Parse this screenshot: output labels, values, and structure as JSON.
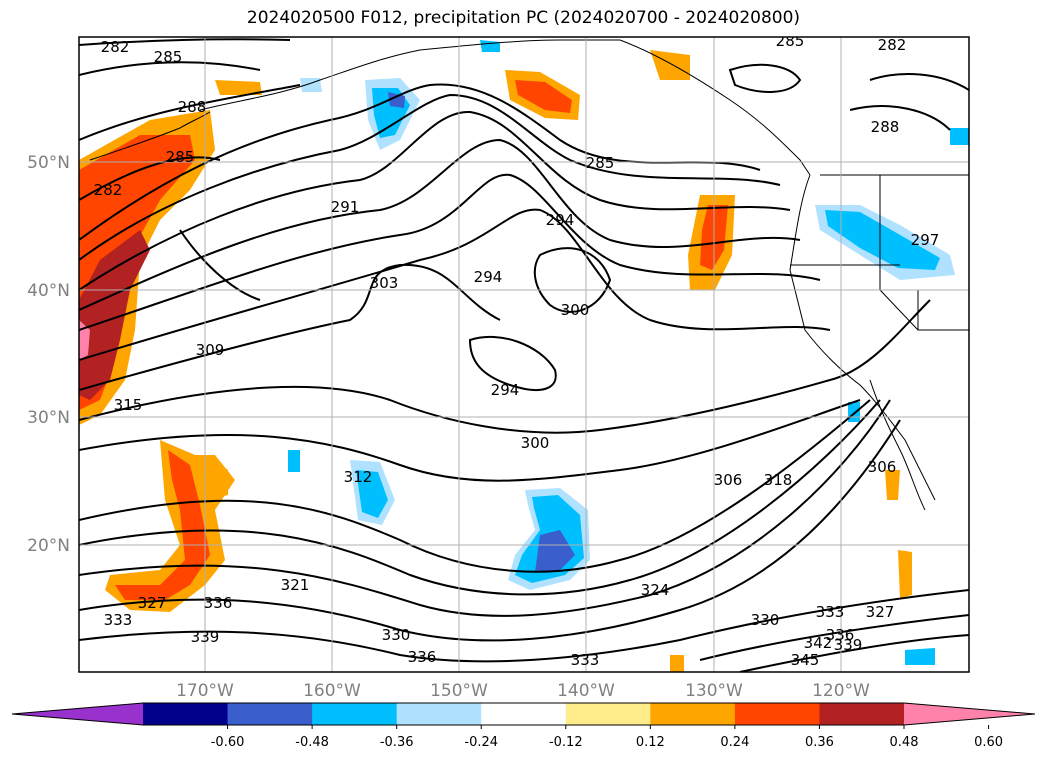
{
  "title": "2024020500 F012, precipitation PC (2024020700 - 2024020800)",
  "chart_data": {
    "type": "heatmap",
    "title": "2024020500 F012, precipitation PC (2024020700 - 2024020800)",
    "map": {
      "lon_range": [
        -180,
        -110
      ],
      "lat_range": [
        10,
        60
      ],
      "lon_ticks": [
        "170°W",
        "160°W",
        "150°W",
        "140°W",
        "130°W",
        "120°W"
      ],
      "lat_ticks": [
        "20°N",
        "30°N",
        "40°N",
        "50°N"
      ],
      "grid": true
    },
    "colorbar": {
      "ticks": [
        "-0.60",
        "-0.48",
        "-0.36",
        "-0.24",
        "-0.12",
        "0.12",
        "0.24",
        "0.36",
        "0.48",
        "0.60"
      ],
      "bins": [
        {
          "range": "< -0.60",
          "color": "#9932cc"
        },
        {
          "range": "-0.60 – -0.48",
          "color": "#00008b"
        },
        {
          "range": "-0.48 – -0.36",
          "color": "#3a5fcd"
        },
        {
          "range": "-0.36 – -0.24",
          "color": "#00bfff"
        },
        {
          "range": "-0.24 – -0.12",
          "color": "#b0e2ff"
        },
        {
          "range": "-0.12 – 0.12",
          "color": "#ffffff"
        },
        {
          "range": "0.12 – 0.24",
          "color": "#ffec8b"
        },
        {
          "range": "0.24 – 0.36",
          "color": "#ffa500"
        },
        {
          "range": "0.36 – 0.48",
          "color": "#ff4500"
        },
        {
          "range": "0.48 – 0.60",
          "color": "#b22222"
        },
        {
          "range": "> 0.60",
          "color": "#ff82ab"
        }
      ],
      "extend": "both"
    },
    "contour_labels": [
      "282",
      "285",
      "288",
      "285",
      "282",
      "291",
      "303",
      "309",
      "315",
      "294",
      "294",
      "300",
      "285",
      "285",
      "282",
      "288",
      "297",
      "294",
      "300",
      "306",
      "318",
      "312",
      "321",
      "336",
      "339",
      "327",
      "333",
      "330",
      "336",
      "333",
      "324",
      "330",
      "333",
      "336",
      "339",
      "342",
      "345",
      "327",
      "306"
    ]
  }
}
